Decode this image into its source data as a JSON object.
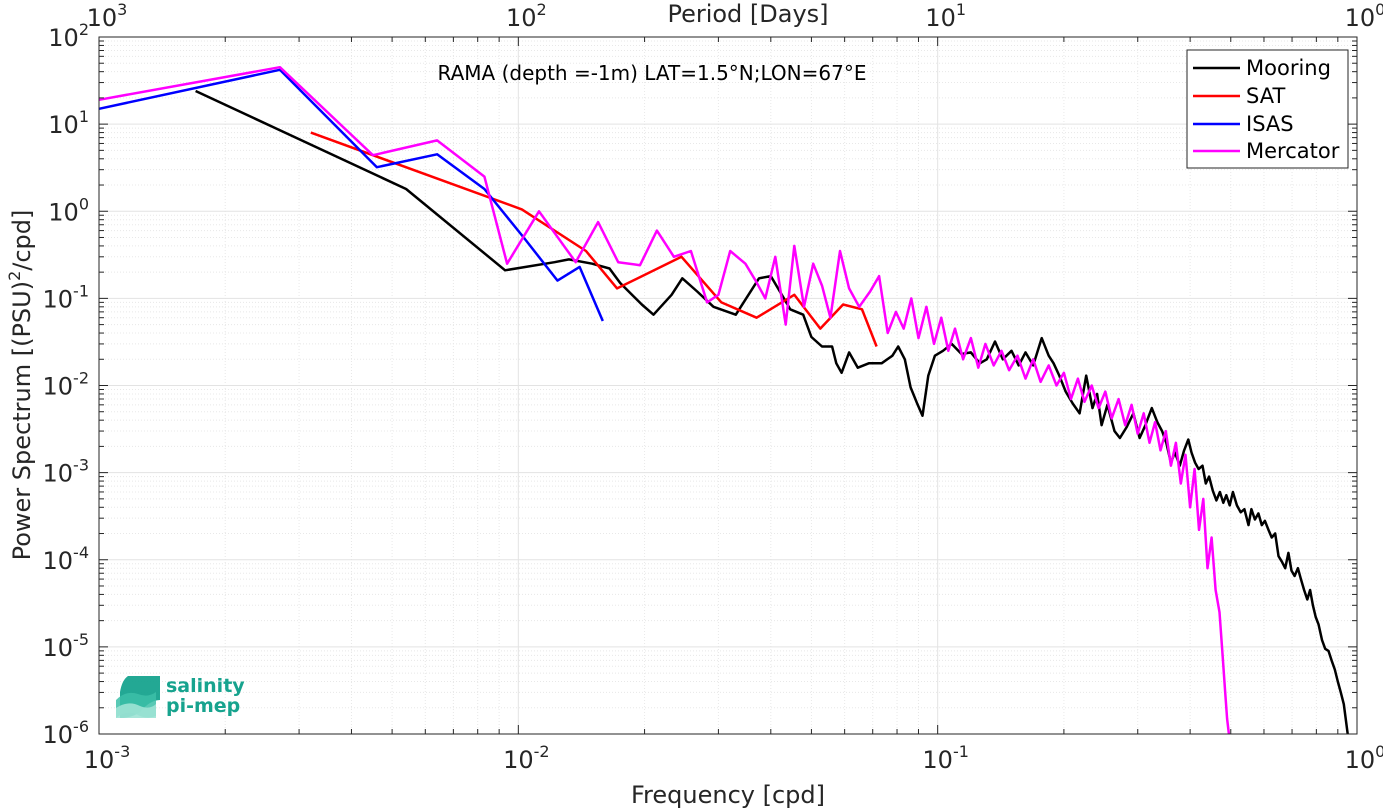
{
  "chart_data": {
    "type": "line",
    "title": "RAMA (depth =-1m) LAT=1.5°N;LON=67°E",
    "xlabel": "Frequency [cpd]",
    "ylabel_main": "Power Spectrum [(PSU)",
    "ylabel_sup": "2",
    "ylabel_tail": "/cpd]",
    "top_xlabel": "Period [Days]",
    "x_scale": "log",
    "y_scale": "log",
    "xlim": [
      0.001,
      1
    ],
    "ylim": [
      1e-06,
      100
    ],
    "grid": true,
    "legend_position": "top-right",
    "x_ticks": [
      {
        "value": 0.001,
        "base": "10",
        "exp": "-3"
      },
      {
        "value": 0.01,
        "base": "10",
        "exp": "-2"
      },
      {
        "value": 0.1,
        "base": "10",
        "exp": "-1"
      },
      {
        "value": 1,
        "base": "10",
        "exp": "0"
      }
    ],
    "y_ticks": [
      {
        "value": 1e-06,
        "base": "10",
        "exp": "-6"
      },
      {
        "value": 1e-05,
        "base": "10",
        "exp": "-5"
      },
      {
        "value": 0.0001,
        "base": "10",
        "exp": "-4"
      },
      {
        "value": 0.001,
        "base": "10",
        "exp": "-3"
      },
      {
        "value": 0.01,
        "base": "10",
        "exp": "-2"
      },
      {
        "value": 0.1,
        "base": "10",
        "exp": "-1"
      },
      {
        "value": 1,
        "base": "10",
        "exp": "0"
      },
      {
        "value": 10,
        "base": "10",
        "exp": "1"
      },
      {
        "value": 100,
        "base": "10",
        "exp": "2"
      }
    ],
    "top_x_ticks": [
      {
        "value": 0.001,
        "base": "10",
        "exp": "3"
      },
      {
        "value": 0.01,
        "base": "10",
        "exp": "2"
      },
      {
        "value": 0.1,
        "base": "10",
        "exp": "1"
      },
      {
        "value": 1,
        "base": "10",
        "exp": "0"
      }
    ],
    "series": [
      {
        "name": "Mooring",
        "color": "#000000",
        "points": [
          [
            0.0017,
            24
          ],
          [
            0.0054,
            1.8
          ],
          [
            0.0093,
            0.21
          ],
          [
            0.0122,
            0.26
          ],
          [
            0.0132,
            0.28
          ],
          [
            0.015,
            0.25
          ],
          [
            0.0165,
            0.22
          ],
          [
            0.0175,
            0.15
          ],
          [
            0.0197,
            0.085
          ],
          [
            0.021,
            0.065
          ],
          [
            0.0232,
            0.11
          ],
          [
            0.0246,
            0.17
          ],
          [
            0.0267,
            0.12
          ],
          [
            0.0292,
            0.08
          ],
          [
            0.033,
            0.065
          ],
          [
            0.0375,
            0.17
          ],
          [
            0.04,
            0.18
          ],
          [
            0.0425,
            0.11
          ],
          [
            0.0445,
            0.075
          ],
          [
            0.0478,
            0.065
          ],
          [
            0.05,
            0.036
          ],
          [
            0.053,
            0.028
          ],
          [
            0.056,
            0.028
          ],
          [
            0.0573,
            0.018
          ],
          [
            0.059,
            0.014
          ],
          [
            0.0615,
            0.024
          ],
          [
            0.0645,
            0.016
          ],
          [
            0.0685,
            0.018
          ],
          [
            0.0735,
            0.018
          ],
          [
            0.078,
            0.022
          ],
          [
            0.0805,
            0.028
          ],
          [
            0.0835,
            0.02
          ],
          [
            0.0862,
            0.0095
          ],
          [
            0.0896,
            0.006
          ],
          [
            0.092,
            0.0045
          ],
          [
            0.095,
            0.013
          ],
          [
            0.0985,
            0.022
          ],
          [
            0.103,
            0.025
          ],
          [
            0.108,
            0.03
          ],
          [
            0.114,
            0.023
          ],
          [
            0.12,
            0.024
          ],
          [
            0.126,
            0.018
          ],
          [
            0.131,
            0.02
          ],
          [
            0.137,
            0.032
          ],
          [
            0.143,
            0.02
          ],
          [
            0.15,
            0.025
          ],
          [
            0.156,
            0.017
          ],
          [
            0.162,
            0.024
          ],
          [
            0.169,
            0.017
          ],
          [
            0.177,
            0.035
          ],
          [
            0.184,
            0.022
          ],
          [
            0.189,
            0.018
          ],
          [
            0.195,
            0.013
          ],
          [
            0.202,
            0.0085
          ],
          [
            0.21,
            0.0062
          ],
          [
            0.218,
            0.0048
          ],
          [
            0.226,
            0.013
          ],
          [
            0.234,
            0.0055
          ],
          [
            0.24,
            0.008
          ],
          [
            0.246,
            0.0035
          ],
          [
            0.254,
            0.006
          ],
          [
            0.264,
            0.003
          ],
          [
            0.272,
            0.0025
          ],
          [
            0.282,
            0.0033
          ],
          [
            0.293,
            0.0048
          ],
          [
            0.303,
            0.0025
          ],
          [
            0.312,
            0.0034
          ],
          [
            0.324,
            0.0055
          ],
          [
            0.334,
            0.0038
          ],
          [
            0.343,
            0.003
          ],
          [
            0.351,
            0.0022
          ],
          [
            0.36,
            0.0013
          ],
          [
            0.368,
            0.0017
          ],
          [
            0.378,
            0.0012
          ],
          [
            0.387,
            0.0018
          ],
          [
            0.396,
            0.0024
          ],
          [
            0.403,
            0.0017
          ],
          [
            0.411,
            0.0013
          ],
          [
            0.419,
            0.0011
          ],
          [
            0.428,
            0.0012
          ],
          [
            0.436,
            0.00075
          ],
          [
            0.444,
            0.0009
          ],
          [
            0.453,
            0.00062
          ],
          [
            0.462,
            0.00048
          ],
          [
            0.471,
            0.0006
          ],
          [
            0.48,
            0.00045
          ],
          [
            0.488,
            0.00055
          ],
          [
            0.497,
            0.00042
          ],
          [
            0.506,
            0.0006
          ],
          [
            0.517,
            0.00042
          ],
          [
            0.528,
            0.00035
          ],
          [
            0.539,
            0.00038
          ],
          [
            0.551,
            0.00025
          ],
          [
            0.56,
            0.00038
          ],
          [
            0.571,
            0.00029
          ],
          [
            0.582,
            0.00034
          ],
          [
            0.593,
            0.00025
          ],
          [
            0.603,
            0.00028
          ],
          [
            0.615,
            0.00022
          ],
          [
            0.626,
            0.00018
          ],
          [
            0.638,
            0.0002
          ],
          [
            0.65,
            0.00011
          ],
          [
            0.662,
            9.5e-05
          ],
          [
            0.674,
            8e-05
          ],
          [
            0.686,
            0.00012
          ],
          [
            0.698,
            7.5e-05
          ],
          [
            0.71,
            6.5e-05
          ],
          [
            0.723,
            8e-05
          ],
          [
            0.735,
            6e-05
          ],
          [
            0.748,
            4.5e-05
          ],
          [
            0.761,
            3.5e-05
          ],
          [
            0.773,
            4.5e-05
          ],
          [
            0.785,
            3e-05
          ],
          [
            0.797,
            2.2e-05
          ],
          [
            0.81,
            1.8e-05
          ],
          [
            0.825,
            1.2e-05
          ],
          [
            0.84,
            9.5e-06
          ],
          [
            0.855,
            9e-06
          ],
          [
            0.87,
            7e-06
          ],
          [
            0.885,
            5.5e-06
          ],
          [
            0.9,
            4e-06
          ],
          [
            0.915,
            3e-06
          ],
          [
            0.93,
            2.2e-06
          ],
          [
            0.94,
            1.5e-06
          ],
          [
            0.95,
            1e-06
          ]
        ]
      },
      {
        "name": "SAT",
        "color": "#ff0000",
        "points": [
          [
            0.0032,
            8
          ],
          [
            0.0102,
            1.05
          ],
          [
            0.0145,
            0.35
          ],
          [
            0.0172,
            0.13
          ],
          [
            0.0245,
            0.3
          ],
          [
            0.0305,
            0.09
          ],
          [
            0.037,
            0.06
          ],
          [
            0.0455,
            0.11
          ],
          [
            0.0525,
            0.045
          ],
          [
            0.0595,
            0.085
          ],
          [
            0.066,
            0.075
          ],
          [
            0.0715,
            0.028
          ]
        ]
      },
      {
        "name": "ISAS",
        "color": "#0000ff",
        "points": [
          [
            0.001,
            15
          ],
          [
            0.0027,
            42
          ],
          [
            0.0046,
            3.2
          ],
          [
            0.0064,
            4.5
          ],
          [
            0.0083,
            1.8
          ],
          [
            0.0103,
            0.5
          ],
          [
            0.0124,
            0.16
          ],
          [
            0.014,
            0.23
          ],
          [
            0.0159,
            0.055
          ]
        ]
      },
      {
        "name": "Mercator",
        "color": "#ff00ff",
        "points": [
          [
            0.001,
            19
          ],
          [
            0.0027,
            45
          ],
          [
            0.0045,
            4.4
          ],
          [
            0.0064,
            6.5
          ],
          [
            0.0083,
            2.5
          ],
          [
            0.0094,
            0.25
          ],
          [
            0.0112,
            1.0
          ],
          [
            0.0137,
            0.26
          ],
          [
            0.0155,
            0.75
          ],
          [
            0.0173,
            0.26
          ],
          [
            0.0195,
            0.24
          ],
          [
            0.0214,
            0.6
          ],
          [
            0.0235,
            0.3
          ],
          [
            0.0258,
            0.35
          ],
          [
            0.0282,
            0.09
          ],
          [
            0.03,
            0.11
          ],
          [
            0.032,
            0.35
          ],
          [
            0.0348,
            0.25
          ],
          [
            0.0368,
            0.16
          ],
          [
            0.0388,
            0.1
          ],
          [
            0.041,
            0.3
          ],
          [
            0.0434,
            0.05
          ],
          [
            0.0455,
            0.4
          ],
          [
            0.048,
            0.08
          ],
          [
            0.0505,
            0.25
          ],
          [
            0.053,
            0.14
          ],
          [
            0.0555,
            0.06
          ],
          [
            0.0585,
            0.35
          ],
          [
            0.0615,
            0.13
          ],
          [
            0.065,
            0.08
          ],
          [
            0.069,
            0.12
          ],
          [
            0.0725,
            0.18
          ],
          [
            0.076,
            0.04
          ],
          [
            0.0795,
            0.07
          ],
          [
            0.083,
            0.045
          ],
          [
            0.0865,
            0.1
          ],
          [
            0.09,
            0.035
          ],
          [
            0.094,
            0.08
          ],
          [
            0.098,
            0.03
          ],
          [
            0.102,
            0.06
          ],
          [
            0.106,
            0.025
          ],
          [
            0.11,
            0.045
          ],
          [
            0.115,
            0.02
          ],
          [
            0.12,
            0.035
          ],
          [
            0.125,
            0.016
          ],
          [
            0.13,
            0.03
          ],
          [
            0.136,
            0.017
          ],
          [
            0.142,
            0.025
          ],
          [
            0.148,
            0.015
          ],
          [
            0.155,
            0.022
          ],
          [
            0.162,
            0.012
          ],
          [
            0.169,
            0.02
          ],
          [
            0.176,
            0.011
          ],
          [
            0.184,
            0.017
          ],
          [
            0.192,
            0.01
          ],
          [
            0.2,
            0.014
          ],
          [
            0.208,
            0.007
          ],
          [
            0.216,
            0.012
          ],
          [
            0.224,
            0.0065
          ],
          [
            0.233,
            0.01
          ],
          [
            0.242,
            0.0055
          ],
          [
            0.251,
            0.0085
          ],
          [
            0.26,
            0.0042
          ],
          [
            0.27,
            0.007
          ],
          [
            0.28,
            0.0035
          ],
          [
            0.29,
            0.006
          ],
          [
            0.3,
            0.0028
          ],
          [
            0.31,
            0.0048
          ],
          [
            0.32,
            0.0022
          ],
          [
            0.33,
            0.0038
          ],
          [
            0.34,
            0.0018
          ],
          [
            0.35,
            0.003
          ],
          [
            0.36,
            0.0012
          ],
          [
            0.37,
            0.0022
          ],
          [
            0.38,
            0.00075
          ],
          [
            0.39,
            0.0016
          ],
          [
            0.4,
            0.0004
          ],
          [
            0.41,
            0.0011
          ],
          [
            0.42,
            0.00022
          ],
          [
            0.43,
            0.0005
          ],
          [
            0.44,
            8e-05
          ],
          [
            0.45,
            0.00018
          ],
          [
            0.46,
            4.5e-05
          ],
          [
            0.47,
            2.5e-05
          ],
          [
            0.478,
            8e-06
          ],
          [
            0.485,
            3e-06
          ],
          [
            0.49,
            1.5e-06
          ],
          [
            0.495,
            1e-06
          ]
        ]
      }
    ]
  },
  "logo": {
    "line1": "salinity",
    "line2": "pi-mep",
    "color": "#17a38e"
  }
}
